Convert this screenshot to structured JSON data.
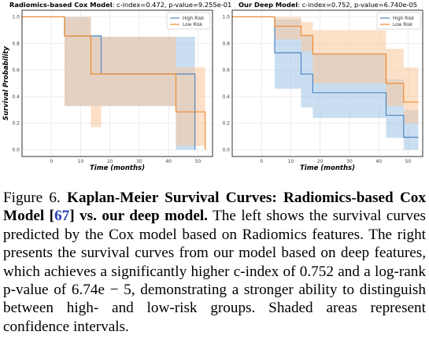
{
  "chart_data": [
    {
      "type": "line",
      "title_bold": "Radiomics-based Cox Model",
      "title_rest": ": c-index=0.472, p-value=9.255e-01",
      "xlabel": "Time (months)",
      "ylabel": "Survival Probability",
      "xlim": [
        -10,
        55
      ],
      "ylim": [
        -0.05,
        1.05
      ],
      "xticks": [
        0,
        10,
        20,
        30,
        40,
        50
      ],
      "yticks": [
        0.0,
        0.2,
        0.4,
        0.6,
        0.8,
        1.0
      ],
      "grid": true,
      "legend_position": "top-right",
      "series": [
        {
          "name": "High Risk",
          "color": "#4f86c0",
          "band_color": "#9dc3e6",
          "steps": [
            [
              -10,
              1.0
            ],
            [
              4.5,
              0.857
            ],
            [
              17,
              0.571
            ],
            [
              49,
              0.0
            ]
          ],
          "ci": [
            [
              -10,
              1.0,
              1.0
            ],
            [
              4.5,
              0.33,
              1.0
            ],
            [
              13.5,
              0.33,
              0.86
            ],
            [
              17,
              0.33,
              0.85
            ],
            [
              42.5,
              0.0,
              0.85
            ],
            [
              49,
              0.0,
              0.0
            ]
          ]
        },
        {
          "name": "Low Risk",
          "color": "#f08c2e",
          "band_color": "#f9c79a",
          "steps": [
            [
              -10,
              1.0
            ],
            [
              4.5,
              0.857
            ],
            [
              13.5,
              0.571
            ],
            [
              42.5,
              0.286
            ],
            [
              52.5,
              0.0
            ]
          ],
          "ci": [
            [
              -10,
              1.0,
              1.0
            ],
            [
              4.5,
              0.33,
              1.0
            ],
            [
              13.5,
              0.17,
              0.85
            ],
            [
              17,
              0.33,
              0.85
            ],
            [
              42.5,
              0.03,
              0.62
            ],
            [
              52.5,
              0.0,
              0.0
            ]
          ]
        }
      ]
    },
    {
      "type": "line",
      "title_bold": "Our Deep Model",
      "title_rest": ": c-index=0.752, p-value=6.740e-05",
      "xlabel": "Time (months)",
      "ylabel": "",
      "xlim": [
        -10,
        55
      ],
      "ylim": [
        -0.05,
        1.05
      ],
      "xticks": [
        0,
        10,
        20,
        30,
        40,
        50
      ],
      "yticks": [
        0.0,
        0.2,
        0.4,
        0.6,
        0.8,
        1.0
      ],
      "grid": true,
      "legend_position": "top-right",
      "series": [
        {
          "name": "High Risk",
          "color": "#4f86c0",
          "band_color": "#9dc3e6",
          "steps": [
            [
              -10,
              1.0
            ],
            [
              4.5,
              0.73
            ],
            [
              13.5,
              0.57
            ],
            [
              17.5,
              0.43
            ],
            [
              42.5,
              0.26
            ],
            [
              48.5,
              0.095
            ],
            [
              53.5,
              0.095
            ]
          ],
          "ci": [
            [
              -10,
              1.0,
              1.0
            ],
            [
              4.5,
              0.46,
              0.98
            ],
            [
              13.5,
              0.32,
              0.86
            ],
            [
              17.5,
              0.24,
              0.73
            ],
            [
              42.5,
              0.09,
              0.53
            ],
            [
              48.5,
              0.0,
              0.3
            ],
            [
              53.5,
              0.0,
              0.3
            ]
          ]
        },
        {
          "name": "Low Risk",
          "color": "#f08c2e",
          "band_color": "#f9c79a",
          "steps": [
            [
              -10,
              1.0
            ],
            [
              4.5,
              0.93
            ],
            [
              13.5,
              0.86
            ],
            [
              17.5,
              0.72
            ],
            [
              42.5,
              0.5
            ],
            [
              48.5,
              0.36
            ],
            [
              53.5,
              0.36
            ]
          ],
          "ci": [
            [
              -10,
              1.0,
              1.0
            ],
            [
              4.5,
              0.83,
              1.0
            ],
            [
              13.5,
              0.74,
              0.96
            ],
            [
              17.5,
              0.5,
              0.9
            ],
            [
              42.5,
              0.33,
              0.76
            ],
            [
              48.5,
              0.2,
              0.62
            ],
            [
              53.5,
              0.2,
              0.62
            ]
          ]
        }
      ]
    }
  ],
  "caption": {
    "figure_label": "Figure 6.",
    "title_bold_1": "Kaplan-Meier Survival Curves: Radiomics-based Cox Model [",
    "ref": "67",
    "title_bold_2": "] vs. our deep model.",
    "body": "The left shows the survival curves predicted by the Cox model based on Radiomics features. The right presents the survival curves from our model based on deep features, which achieves a significantly higher c-index of 0.752 and a log-rank p-value of 6.74e − 5, demonstrating a stronger ability to distinguish between high- and low-risk groups. Shaded areas represent confidence intervals."
  }
}
